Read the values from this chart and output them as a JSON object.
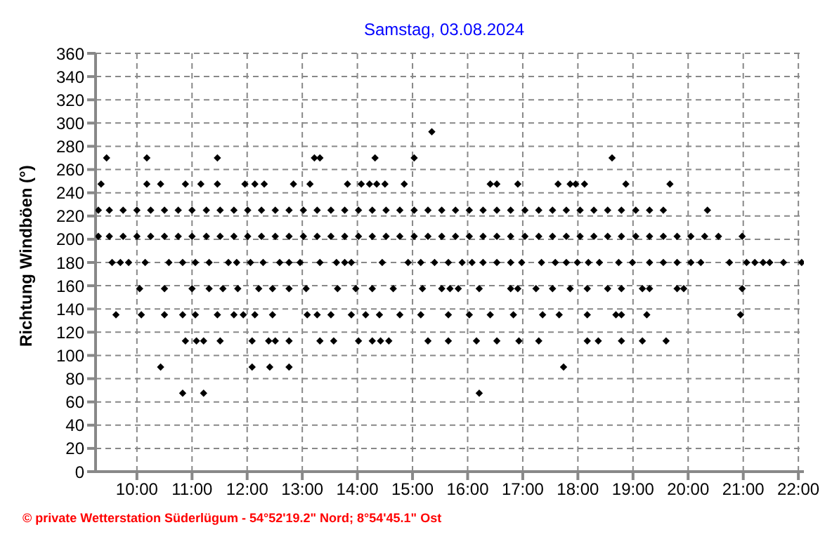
{
  "chart_data": {
    "type": "scatter",
    "title": "Samstag, 03.08.2024",
    "ylabel": "Richtung Windböen (°)",
    "annotations": [
      "© private Wetterstation Süderlügum - 54°52'19.2\" Nord; 8°54'45.1\" Ost"
    ],
    "xlim": [
      9.25,
      22.1
    ],
    "xticks": [
      {
        "value": 10,
        "label": "10:00"
      },
      {
        "value": 11,
        "label": "11:00"
      },
      {
        "value": 12,
        "label": "12:00"
      },
      {
        "value": 13,
        "label": "13:00"
      },
      {
        "value": 14,
        "label": "14:00"
      },
      {
        "value": 15,
        "label": "15:00"
      },
      {
        "value": 16,
        "label": "16:00"
      },
      {
        "value": 17,
        "label": "17:00"
      },
      {
        "value": 18,
        "label": "18:00"
      },
      {
        "value": 19,
        "label": "19:00"
      },
      {
        "value": 20,
        "label": "20:00"
      },
      {
        "value": 21,
        "label": "21:00"
      },
      {
        "value": 22,
        "label": "22:00"
      }
    ],
    "ylim": [
      0,
      360
    ],
    "yticks": [
      0,
      20,
      40,
      60,
      80,
      100,
      120,
      140,
      160,
      180,
      200,
      220,
      240,
      260,
      280,
      300,
      320,
      340,
      360
    ],
    "grid": true,
    "marker": "diamond",
    "series": [
      {
        "color": "#000000",
        "x": [
          15.35
        ],
        "values": [
          292.5
        ]
      },
      {
        "color": "#000000",
        "x": [
          9.45,
          10.18,
          11.46,
          13.22,
          13.32,
          14.32,
          15.03,
          18.62
        ],
        "values": [
          270,
          270,
          270,
          270,
          270,
          270,
          270,
          270
        ]
      },
      {
        "color": "#000000",
        "x": [
          9.35,
          10.18,
          10.43,
          10.88,
          11.16,
          11.46,
          11.96,
          12.14,
          12.31,
          12.84,
          13.14,
          13.82,
          14.07,
          14.22,
          14.35,
          14.5,
          14.85,
          16.41,
          16.53,
          16.91,
          17.64,
          17.86,
          17.96,
          18.12,
          18.87,
          19.67
        ],
        "values": [
          247.5,
          247.5,
          247.5,
          247.5,
          247.5,
          247.5,
          247.5,
          247.5,
          247.5,
          247.5,
          247.5,
          247.5,
          247.5,
          247.5,
          247.5,
          247.5,
          247.5,
          247.5,
          247.5,
          247.5,
          247.5,
          247.5,
          247.5,
          247.5,
          247.5,
          247.5
        ]
      },
      {
        "color": "#000000",
        "x": [
          9.3,
          9.5,
          9.75,
          10,
          10.25,
          10.5,
          10.75,
          11,
          11.26,
          11.51,
          11.76,
          12.01,
          12.26,
          12.51,
          12.76,
          13.02,
          13.27,
          13.52,
          13.77,
          14.02,
          14.27,
          14.52,
          14.77,
          15.03,
          15.28,
          15.53,
          15.78,
          16.03,
          16.28,
          16.53,
          16.78,
          17.04,
          17.29,
          17.54,
          17.79,
          18.04,
          18.29,
          18.54,
          18.79,
          19.05,
          19.3,
          19.55,
          20.35
        ],
        "values": [
          225,
          225,
          225,
          225,
          225,
          225,
          225,
          225,
          225,
          225,
          225,
          225,
          225,
          225,
          225,
          225,
          225,
          225,
          225,
          225,
          225,
          225,
          225,
          225,
          225,
          225,
          225,
          225,
          225,
          225,
          225,
          225,
          225,
          225,
          225,
          225,
          225,
          225,
          225,
          225,
          225,
          225,
          225
        ]
      },
      {
        "color": "#000000",
        "x": [
          9.3,
          9.5,
          9.75,
          10,
          10.25,
          10.5,
          10.75,
          11,
          11.26,
          11.51,
          11.76,
          12.01,
          12.26,
          12.51,
          12.76,
          13.02,
          13.27,
          13.52,
          13.77,
          14.02,
          14.27,
          14.52,
          14.77,
          15.03,
          15.28,
          15.53,
          15.78,
          16.03,
          16.28,
          16.53,
          16.78,
          17.04,
          17.29,
          17.54,
          17.79,
          18.04,
          18.29,
          18.54,
          18.79,
          19.05,
          19.3,
          19.55,
          19.8,
          20.05,
          20.3,
          20.55,
          20.98
        ],
        "values": [
          202.5,
          202.5,
          202.5,
          202.5,
          202.5,
          202.5,
          202.5,
          202.5,
          202.5,
          202.5,
          202.5,
          202.5,
          202.5,
          202.5,
          202.5,
          202.5,
          202.5,
          202.5,
          202.5,
          202.5,
          202.5,
          202.5,
          202.5,
          202.5,
          202.5,
          202.5,
          202.5,
          202.5,
          202.5,
          202.5,
          202.5,
          202.5,
          202.5,
          202.5,
          202.5,
          202.5,
          202.5,
          202.5,
          202.5,
          202.5,
          202.5,
          202.5,
          202.5,
          202.5,
          202.5,
          202.5,
          202.5
        ]
      },
      {
        "color": "#000000",
        "x": [
          9.55,
          9.7,
          9.85,
          10.15,
          10.58,
          10.83,
          11.06,
          11.31,
          11.66,
          11.81,
          12.06,
          12.29,
          12.59,
          12.76,
          12.96,
          13.32,
          13.62,
          13.77,
          13.89,
          14.45,
          14.92,
          15.15,
          15.4,
          15.65,
          15.9,
          16.08,
          16.28,
          16.53,
          16.78,
          16.98,
          17.34,
          17.59,
          17.79,
          17.99,
          18.19,
          18.39,
          18.74,
          18.99,
          19.3,
          19.55,
          19.8,
          20.05,
          20.23,
          20.75,
          21.06,
          21.21,
          21.36,
          21.48,
          21.73,
          22.06
        ],
        "values": [
          180,
          180,
          180,
          180,
          180,
          180,
          180,
          180,
          180,
          180,
          180,
          180,
          180,
          180,
          180,
          180,
          180,
          180,
          180,
          180,
          180,
          180,
          180,
          180,
          180,
          180,
          180,
          180,
          180,
          180,
          180,
          180,
          180,
          180,
          180,
          180,
          180,
          180,
          180,
          180,
          180,
          180,
          180,
          180,
          180,
          180,
          180,
          180,
          180,
          180
        ]
      },
      {
        "color": "#000000",
        "x": [
          10.05,
          10.5,
          11,
          11.31,
          11.56,
          11.83,
          12.21,
          12.46,
          12.76,
          13.07,
          13.64,
          13.97,
          14.27,
          14.65,
          15.18,
          15.53,
          15.68,
          15.83,
          16.21,
          16.78,
          16.91,
          17.24,
          17.54,
          17.86,
          18.17,
          18.54,
          18.79,
          19.17,
          19.3,
          19.8,
          19.92,
          20.98
        ],
        "values": [
          157.5,
          157.5,
          157.5,
          157.5,
          157.5,
          157.5,
          157.5,
          157.5,
          157.5,
          157.5,
          157.5,
          157.5,
          157.5,
          157.5,
          157.5,
          157.5,
          157.5,
          157.5,
          157.5,
          157.5,
          157.5,
          157.5,
          157.5,
          157.5,
          157.5,
          157.5,
          157.5,
          157.5,
          157.5,
          157.5,
          157.5,
          157.5
        ]
      },
      {
        "color": "#000000",
        "x": [
          9.62,
          10.08,
          10.5,
          10.83,
          11.06,
          11.46,
          11.76,
          11.93,
          12.14,
          12.46,
          13.09,
          13.27,
          13.52,
          13.89,
          14.15,
          14.4,
          14.77,
          15.15,
          15.65,
          16.03,
          16.41,
          16.83,
          17.36,
          17.66,
          18.17,
          18.69,
          18.79,
          19.25,
          20.95
        ],
        "values": [
          135,
          135,
          135,
          135,
          135,
          135,
          135,
          135,
          135,
          135,
          135,
          135,
          135,
          135,
          135,
          135,
          135,
          135,
          135,
          135,
          135,
          135,
          135,
          135,
          135,
          135,
          135,
          135,
          135
        ]
      },
      {
        "color": "#000000",
        "x": [
          10.88,
          11.08,
          11.21,
          11.51,
          12.09,
          12.39,
          12.51,
          12.76,
          13.32,
          13.57,
          14.02,
          14.27,
          14.42,
          14.57,
          15.28,
          15.65,
          16.16,
          16.53,
          16.93,
          17.29,
          18.17,
          18.37,
          18.79,
          19.17,
          19.6
        ],
        "values": [
          112.5,
          112.5,
          112.5,
          112.5,
          112.5,
          112.5,
          112.5,
          112.5,
          112.5,
          112.5,
          112.5,
          112.5,
          112.5,
          112.5,
          112.5,
          112.5,
          112.5,
          112.5,
          112.5,
          112.5,
          112.5,
          112.5,
          112.5,
          112.5,
          112.5
        ]
      },
      {
        "color": "#000000",
        "x": [
          10.43,
          12.09,
          12.41,
          12.76,
          17.74
        ],
        "values": [
          90,
          90,
          90,
          90,
          90
        ]
      },
      {
        "color": "#000000",
        "x": [
          10.83,
          11.21,
          16.21
        ],
        "values": [
          67.5,
          67.5,
          67.5
        ]
      }
    ]
  }
}
